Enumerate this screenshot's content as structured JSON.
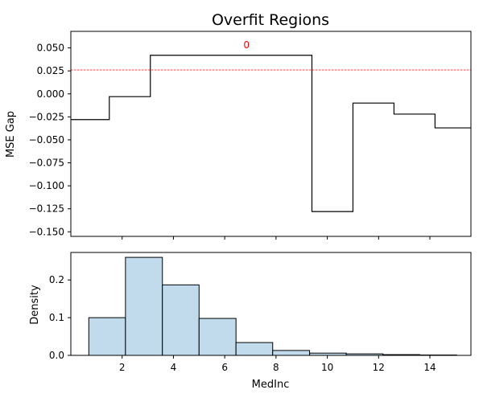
{
  "chart_data": [
    {
      "type": "line",
      "step": "post",
      "title": "Overfit Regions",
      "xlabel": "",
      "ylabel": "MSE Gap",
      "xlim": [
        0.0,
        15.6
      ],
      "ylim": [
        -0.155,
        0.068
      ],
      "yticks": [
        -0.15,
        -0.125,
        -0.1,
        -0.075,
        -0.05,
        -0.025,
        0.0,
        0.025,
        0.05
      ],
      "ytick_labels": [
        "−0.150",
        "−0.125",
        "−0.100",
        "−0.075",
        "−0.050",
        "−0.025",
        "0.000",
        "0.025",
        "0.050"
      ],
      "xticks": [
        2,
        4,
        6,
        8,
        10,
        12,
        14
      ],
      "show_xtick_labels": false,
      "grid": false,
      "series": [
        {
          "x": [
            0.0,
            1.5,
            3.1,
            9.4,
            11.0,
            12.6,
            14.2,
            15.6
          ],
          "y": [
            -0.028,
            -0.003,
            0.042,
            -0.128,
            -0.01,
            -0.022,
            -0.037,
            -0.037
          ],
          "color": "#000000"
        }
      ],
      "threshold": {
        "y": 0.026,
        "color": "#ff0000",
        "style": "dashed"
      },
      "annotations": [
        {
          "text": "0",
          "x": 6.85,
          "y": 0.053,
          "color": "#ff0000"
        }
      ]
    },
    {
      "type": "bar",
      "histogram": true,
      "title": "",
      "xlabel": "MedInc",
      "ylabel": "Density",
      "xlim": [
        0.0,
        15.6
      ],
      "ylim": [
        0.0,
        0.273
      ],
      "xticks": [
        2,
        4,
        6,
        8,
        10,
        12,
        14
      ],
      "xtick_labels": [
        "2",
        "4",
        "6",
        "8",
        "10",
        "12",
        "14"
      ],
      "yticks": [
        0.0,
        0.1,
        0.2
      ],
      "ytick_labels": [
        "0.0",
        "0.1",
        "0.2"
      ],
      "grid": false,
      "bin_edges": [
        0.7,
        2.13,
        3.57,
        5.0,
        6.44,
        7.87,
        9.31,
        10.74,
        12.17,
        13.61,
        15.04
      ],
      "values": [
        0.1,
        0.26,
        0.187,
        0.098,
        0.034,
        0.013,
        0.006,
        0.004,
        0.002,
        0.001
      ],
      "fill": "#c1dbec",
      "edge": "#000000"
    }
  ]
}
